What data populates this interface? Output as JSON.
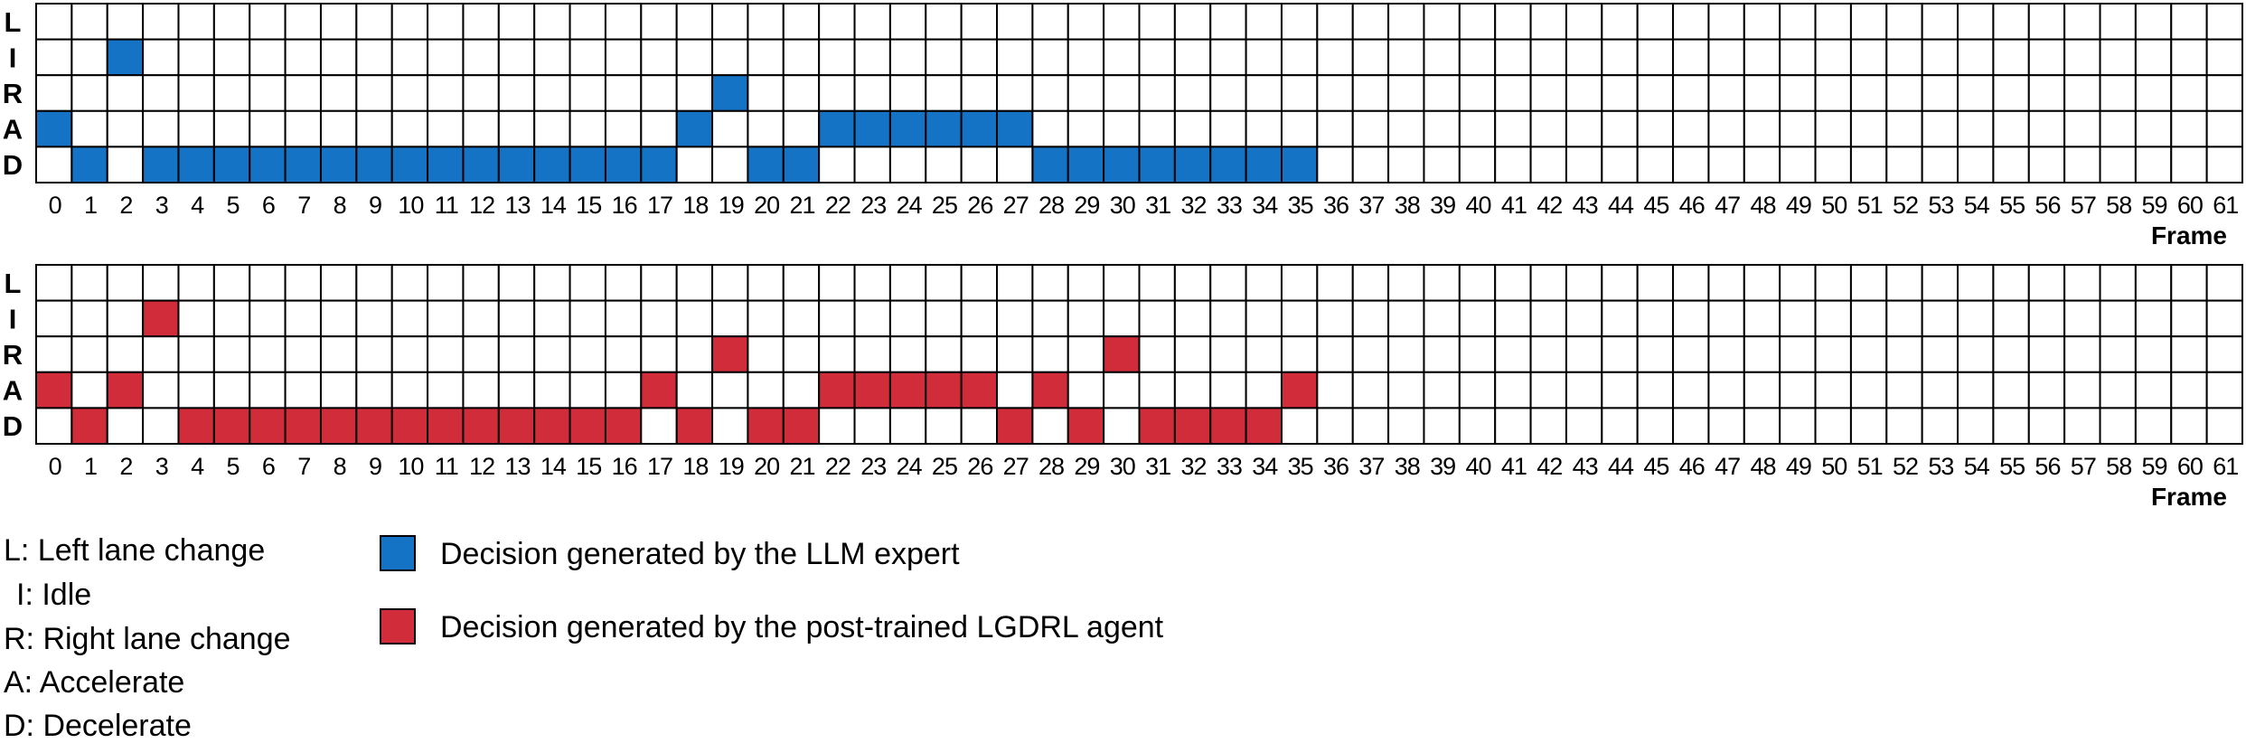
{
  "chart_data": [
    {
      "type": "heatmap",
      "panel": "llm-expert",
      "rows": [
        "L",
        "I",
        "R",
        "A",
        "D"
      ],
      "xlabel": "Frame",
      "x": [
        0,
        1,
        2,
        3,
        4,
        5,
        6,
        7,
        8,
        9,
        10,
        11,
        12,
        13,
        14,
        15,
        16,
        17,
        18,
        19,
        20,
        21,
        22,
        23,
        24,
        25,
        26,
        27,
        28,
        29,
        30,
        31,
        32,
        33,
        34,
        35,
        36,
        37,
        38,
        39,
        40,
        41,
        42,
        43,
        44,
        45,
        46,
        47,
        48,
        49,
        50,
        51,
        52,
        53,
        54,
        55,
        56,
        57,
        58,
        59,
        60,
        61
      ],
      "decisions": [
        "A",
        "D",
        "I",
        "D",
        "D",
        "D",
        "D",
        "D",
        "D",
        "D",
        "D",
        "D",
        "D",
        "D",
        "D",
        "D",
        "D",
        "D",
        "A",
        "R",
        "D",
        "D",
        "A",
        "A",
        "A",
        "A",
        "A",
        "A",
        "D",
        "D",
        "D",
        "D",
        "D",
        "D",
        "D",
        "D"
      ],
      "color": "#1473c4",
      "series": [
        {
          "name": "Decision generated by the LLM expert"
        }
      ]
    },
    {
      "type": "heatmap",
      "panel": "lgdrl-agent",
      "rows": [
        "L",
        "I",
        "R",
        "A",
        "D"
      ],
      "xlabel": "Frame",
      "x": [
        0,
        1,
        2,
        3,
        4,
        5,
        6,
        7,
        8,
        9,
        10,
        11,
        12,
        13,
        14,
        15,
        16,
        17,
        18,
        19,
        20,
        21,
        22,
        23,
        24,
        25,
        26,
        27,
        28,
        29,
        30,
        31,
        32,
        33,
        34,
        35,
        36,
        37,
        38,
        39,
        40,
        41,
        42,
        43,
        44,
        45,
        46,
        47,
        48,
        49,
        50,
        51,
        52,
        53,
        54,
        55,
        56,
        57,
        58,
        59,
        60,
        61
      ],
      "decisions": [
        "A",
        "D",
        "A",
        "I",
        "D",
        "D",
        "D",
        "D",
        "D",
        "D",
        "D",
        "D",
        "D",
        "D",
        "D",
        "D",
        "D",
        "A",
        "D",
        "R",
        "D",
        "D",
        "A",
        "A",
        "A",
        "A",
        "A",
        "D",
        "A",
        "D",
        "R",
        "D",
        "D",
        "D",
        "D",
        "A"
      ],
      "color": "#d12c39",
      "series": [
        {
          "name": "Decision generated by the post-trained LGDRL agent"
        }
      ]
    }
  ],
  "legend": {
    "keys": [
      "L: Left lane change",
      "I: Idle",
      "R: Right lane change",
      "A: Accelerate",
      "D: Decelerate"
    ],
    "entries": [
      {
        "label": "Decision generated by the LLM expert",
        "color": "#1473c4"
      },
      {
        "label": "Decision generated by the post-trained LGDRL agent",
        "color": "#d12c39"
      }
    ]
  }
}
